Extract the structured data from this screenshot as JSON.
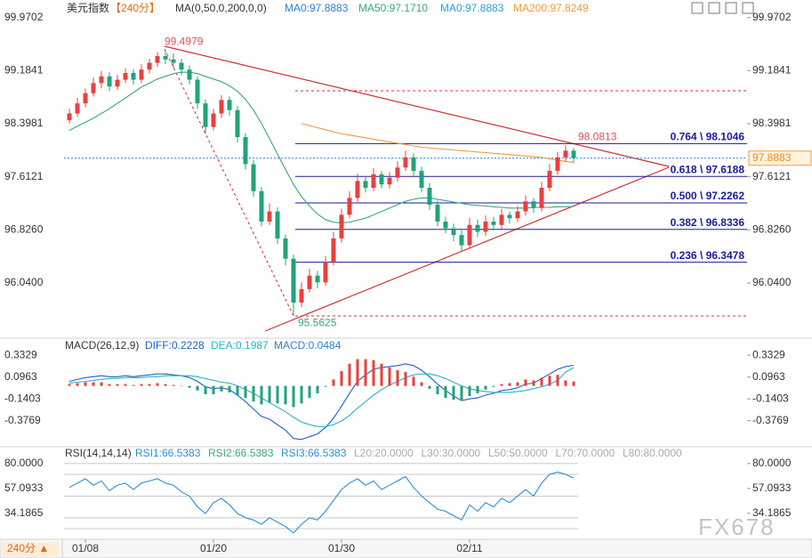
{
  "chart_data": [
    {
      "type": "candlestick",
      "title": "美元指数",
      "period": "【240分】",
      "indicator": "MA(0,50,0,200,0,0)",
      "up_color": "#e8403c",
      "down_color": "#1fa37a",
      "ylim": [
        95.25,
        100.23
      ],
      "yticks": [
        99.9702,
        99.1841,
        98.3981,
        97.6121,
        {
          "value": 96.826,
          "label": "96.8260"
        },
        {
          "value": 96.04,
          "label": "96.0400"
        }
      ],
      "xlim": [
        -0.67,
        84.67
      ],
      "xticks": [
        {
          "value": 2,
          "label": "01/08"
        },
        {
          "value": 18,
          "label": "01/20"
        },
        {
          "value": 34,
          "label": "01/30"
        },
        {
          "value": 50,
          "label": "02/11"
        }
      ],
      "candles": [
        [
          98.45,
          98.62,
          98.4,
          98.55
        ],
        [
          98.55,
          98.78,
          98.5,
          98.7
        ],
        [
          98.7,
          98.92,
          98.64,
          98.85
        ],
        [
          98.85,
          99.08,
          98.8,
          99.0
        ],
        [
          99.0,
          99.18,
          98.92,
          99.1
        ],
        [
          99.1,
          99.16,
          98.88,
          98.95
        ],
        [
          98.95,
          99.12,
          98.9,
          99.05
        ],
        [
          99.05,
          99.22,
          99.0,
          99.15
        ],
        [
          99.15,
          99.2,
          98.98,
          99.05
        ],
        [
          99.05,
          99.28,
          99.0,
          99.2
        ],
        [
          99.2,
          99.36,
          99.14,
          99.3
        ],
        [
          99.3,
          99.46,
          99.24,
          99.4
        ],
        [
          99.4,
          99.4979,
          99.28,
          99.35
        ],
        [
          99.35,
          99.44,
          99.22,
          99.3
        ],
        [
          99.3,
          99.36,
          99.12,
          99.2
        ],
        [
          99.2,
          99.26,
          98.98,
          99.05
        ],
        [
          99.05,
          99.1,
          98.62,
          98.7
        ],
        [
          98.7,
          98.76,
          98.25,
          98.35
        ],
        [
          98.35,
          98.62,
          98.3,
          98.55
        ],
        [
          98.55,
          98.82,
          98.48,
          98.75
        ],
        [
          98.75,
          98.8,
          98.52,
          98.6
        ],
        [
          98.6,
          98.66,
          98.12,
          98.2
        ],
        [
          98.2,
          98.26,
          97.72,
          97.8
        ],
        [
          97.8,
          97.86,
          97.32,
          97.4
        ],
        [
          97.4,
          97.46,
          96.88,
          96.95
        ],
        [
          96.95,
          97.22,
          96.9,
          97.1
        ],
        [
          97.1,
          97.16,
          96.62,
          96.7
        ],
        [
          96.7,
          96.76,
          96.3,
          96.4
        ],
        [
          96.4,
          96.46,
          95.5625,
          95.75
        ],
        [
          95.75,
          96.05,
          95.68,
          95.95
        ],
        [
          95.95,
          96.25,
          95.9,
          96.15
        ],
        [
          96.15,
          96.22,
          95.96,
          96.05
        ],
        [
          96.05,
          96.44,
          96.0,
          96.35
        ],
        [
          96.35,
          96.8,
          96.3,
          96.7
        ],
        [
          96.7,
          97.14,
          96.64,
          97.05
        ],
        [
          97.05,
          97.4,
          97.0,
          97.3
        ],
        [
          97.3,
          97.66,
          97.24,
          97.55
        ],
        [
          97.55,
          97.62,
          97.38,
          97.45
        ],
        [
          97.45,
          97.74,
          97.4,
          97.65
        ],
        [
          97.65,
          97.7,
          97.44,
          97.5
        ],
        [
          97.5,
          97.68,
          97.44,
          97.6
        ],
        [
          97.6,
          97.84,
          97.54,
          97.75
        ],
        [
          97.75,
          98.0,
          97.7,
          97.9
        ],
        [
          97.9,
          97.96,
          97.62,
          97.7
        ],
        [
          97.7,
          97.76,
          97.38,
          97.45
        ],
        [
          97.45,
          97.52,
          97.12,
          97.2
        ],
        [
          97.2,
          97.26,
          96.88,
          96.95
        ],
        [
          96.95,
          97.02,
          96.78,
          96.85
        ],
        [
          96.85,
          96.92,
          96.66,
          96.75
        ],
        [
          96.75,
          96.82,
          96.5,
          96.6
        ],
        [
          96.6,
          97.0,
          96.55,
          96.9
        ],
        [
          96.9,
          96.98,
          96.72,
          96.8
        ],
        [
          96.8,
          97.04,
          96.74,
          96.95
        ],
        [
          96.95,
          97.02,
          96.82,
          96.9
        ],
        [
          96.9,
          97.14,
          96.84,
          97.05
        ],
        [
          97.05,
          97.1,
          96.92,
          97.0
        ],
        [
          97.0,
          97.18,
          96.94,
          97.1
        ],
        [
          97.1,
          97.34,
          97.04,
          97.25
        ],
        [
          97.25,
          97.3,
          97.08,
          97.15
        ],
        [
          97.15,
          97.54,
          97.1,
          97.45
        ],
        [
          97.45,
          97.8,
          97.4,
          97.7
        ],
        [
          97.7,
          97.98,
          97.64,
          97.9
        ],
        [
          97.9,
          98.0813,
          97.84,
          98.0
        ],
        [
          98.0,
          98.04,
          97.82,
          97.89
        ]
      ],
      "series": [
        {
          "name": "MA0:97.8883",
          "color": "#2d7fd0"
        },
        {
          "name": "MA50:97.1710",
          "color": "#3aa876",
          "values": [
            98.3,
            98.36,
            98.42,
            98.48,
            98.55,
            98.62,
            98.7,
            98.78,
            98.86,
            98.94,
            99.0,
            99.06,
            99.1,
            99.14,
            99.16,
            99.16,
            99.14,
            99.1,
            99.06,
            99.02,
            98.96,
            98.88,
            98.76,
            98.6,
            98.4,
            98.18,
            97.95,
            97.72,
            97.5,
            97.32,
            97.18,
            97.06,
            96.98,
            96.94,
            96.93,
            96.94,
            96.97,
            97.0,
            97.05,
            97.1,
            97.15,
            97.2,
            97.25,
            97.28,
            97.3,
            97.3,
            97.28,
            97.26,
            97.24,
            97.22,
            97.2,
            97.19,
            97.18,
            97.17,
            97.16,
            97.15,
            97.15,
            97.15,
            97.16,
            97.16,
            97.16,
            97.17,
            97.17,
            97.171
          ]
        },
        {
          "name": "MA0:97.8883",
          "color": "#2a9fd6"
        },
        {
          "name": "MA200:97.8249",
          "color": "#f09a3e",
          "values": [
            null,
            null,
            null,
            null,
            null,
            null,
            null,
            null,
            null,
            null,
            null,
            null,
            null,
            null,
            null,
            null,
            null,
            null,
            null,
            null,
            null,
            null,
            null,
            null,
            null,
            null,
            null,
            null,
            null,
            98.4,
            98.37,
            98.34,
            98.31,
            98.28,
            98.25,
            98.23,
            98.21,
            98.19,
            98.17,
            98.15,
            98.13,
            98.11,
            98.09,
            98.07,
            98.05,
            98.04,
            98.03,
            98.02,
            98.01,
            98.0,
            97.99,
            97.98,
            97.97,
            97.96,
            97.95,
            97.94,
            97.93,
            97.92,
            97.91,
            97.9,
            97.88,
            97.86,
            97.84,
            97.8249
          ]
        }
      ],
      "annotations": [
        99.4979,
        95.5625,
        98.0813
      ],
      "fib_levels": [
        {
          "value": 98.1046,
          "label": "0.764 \\ 98.1046"
        },
        {
          "value": 97.6188,
          "label": "0.618 \\ 97.6188"
        },
        {
          "value": 97.2262,
          "label": "0.500 \\ 97.2262"
        },
        {
          "value": 96.8336,
          "label": "0.382 \\ 96.8336"
        },
        {
          "value": 96.3478,
          "label": "0.236 \\ 96.3478"
        }
      ],
      "last_price": 97.8883
    },
    {
      "type": "macd",
      "title": "MACD(26,12,9)",
      "ylim": [
        -0.64,
        0.498
      ],
      "yticks": [
        0.3329,
        0.0963,
        -0.1403,
        -0.3769
      ],
      "series": [
        {
          "name": "DIFF:0.2228",
          "color": "#1e5fc8",
          "values": [
            0.05,
            0.07,
            0.09,
            0.1,
            0.11,
            0.1,
            0.1,
            0.11,
            0.1,
            0.11,
            0.12,
            0.13,
            0.13,
            0.12,
            0.11,
            0.09,
            0.05,
            -0.01,
            -0.03,
            -0.02,
            -0.04,
            -0.1,
            -0.17,
            -0.25,
            -0.33,
            -0.36,
            -0.42,
            -0.48,
            -0.57,
            -0.58,
            -0.55,
            -0.52,
            -0.45,
            -0.35,
            -0.22,
            -0.08,
            0.05,
            0.12,
            0.18,
            0.2,
            0.21,
            0.22,
            0.24,
            0.22,
            0.17,
            0.1,
            0.02,
            -0.05,
            -0.11,
            -0.16,
            -0.14,
            -0.13,
            -0.1,
            -0.08,
            -0.05,
            -0.04,
            -0.02,
            0.02,
            0.03,
            0.08,
            0.13,
            0.18,
            0.21,
            0.2228
          ]
        },
        {
          "name": "DEA:0.1987",
          "color": "#29b3c4",
          "values": [
            0.03,
            0.04,
            0.05,
            0.06,
            0.07,
            0.08,
            0.08,
            0.09,
            0.09,
            0.09,
            0.1,
            0.1,
            0.11,
            0.11,
            0.11,
            0.11,
            0.1,
            0.08,
            0.06,
            0.04,
            0.03,
            0.0,
            -0.04,
            -0.08,
            -0.13,
            -0.18,
            -0.23,
            -0.28,
            -0.34,
            -0.39,
            -0.42,
            -0.44,
            -0.44,
            -0.42,
            -0.38,
            -0.32,
            -0.24,
            -0.17,
            -0.1,
            -0.04,
            0.01,
            0.05,
            0.09,
            0.12,
            0.13,
            0.13,
            0.11,
            0.08,
            0.04,
            0.0,
            -0.03,
            -0.05,
            -0.06,
            -0.07,
            -0.07,
            -0.07,
            -0.06,
            -0.05,
            -0.03,
            -0.01,
            0.02,
            0.06,
            0.15,
            0.1987
          ]
        },
        {
          "name": "MACD:0.0484",
          "color": "#2d7fd0",
          "bar": true,
          "values": [
            0.02,
            0.03,
            0.04,
            0.04,
            0.04,
            0.02,
            0.02,
            0.02,
            0.01,
            0.02,
            0.02,
            0.03,
            0.02,
            0.01,
            0.0,
            -0.02,
            -0.05,
            -0.09,
            -0.09,
            -0.06,
            -0.07,
            -0.1,
            -0.13,
            -0.17,
            -0.2,
            -0.18,
            -0.19,
            -0.2,
            -0.23,
            -0.19,
            -0.13,
            -0.08,
            -0.01,
            0.07,
            0.16,
            0.24,
            0.29,
            0.29,
            0.28,
            0.24,
            0.2,
            0.17,
            0.15,
            0.1,
            0.04,
            -0.03,
            -0.09,
            -0.13,
            -0.15,
            -0.16,
            -0.11,
            -0.08,
            -0.04,
            -0.01,
            0.02,
            0.03,
            0.04,
            0.07,
            0.06,
            0.09,
            0.11,
            0.12,
            0.06,
            0.0484
          ]
        }
      ]
    },
    {
      "type": "rsi",
      "title": "RSI(14,14,14)",
      "ylim": [
        11,
        93
      ],
      "yticks": [
        {
          "value": 80,
          "label": "80.0000"
        },
        57.0933,
        34.1865
      ],
      "series": [
        {
          "name": "RSI1:66.5383",
          "color": "#2a8fd6",
          "values": [
            58,
            62,
            66,
            60,
            64,
            55,
            60,
            62,
            56,
            62,
            64,
            66,
            62,
            60,
            54,
            50,
            40,
            34,
            44,
            48,
            42,
            34,
            30,
            28,
            24,
            30,
            26,
            22,
            16,
            24,
            30,
            28,
            36,
            46,
            56,
            62,
            66,
            60,
            64,
            56,
            60,
            64,
            68,
            58,
            50,
            44,
            38,
            36,
            32,
            28,
            42,
            36,
            44,
            40,
            48,
            44,
            50,
            56,
            50,
            62,
            70,
            72,
            70,
            66.5383
          ]
        },
        {
          "name": "RSI2:66.5383",
          "color": "#3aa876"
        },
        {
          "name": "RSI3:66.5383",
          "color": "#2a8fd6"
        }
      ],
      "levels": [
        {
          "value": 20,
          "label": "L20:20.0000"
        },
        {
          "value": 30,
          "label": "L30:30.0000"
        },
        {
          "value": 50,
          "label": "L50:50.0000"
        },
        {
          "value": 70,
          "label": "L70:70.0000"
        },
        {
          "value": 80,
          "label": "L80:80.0000"
        }
      ]
    }
  ],
  "footer": {
    "period": "240分 ▲"
  },
  "watermark": "FX678"
}
